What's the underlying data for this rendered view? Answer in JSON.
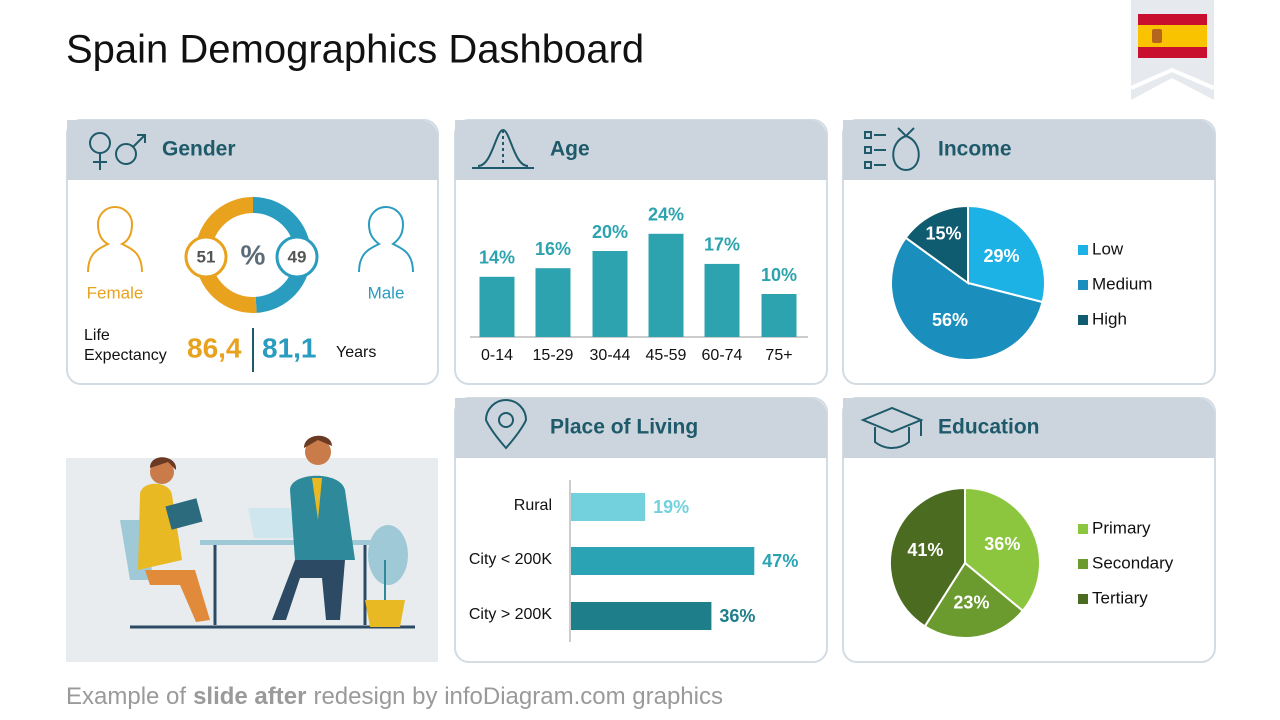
{
  "title": "Spain Demographics Dashboard",
  "footer": [
    "Example of",
    "slide after",
    "redesign by infoDiagram.com graphics"
  ],
  "gender": {
    "title": "Gender",
    "center_label": "%",
    "life_expectancy_label": "Life Expectancy",
    "years_label": "Years",
    "female": {
      "label": "Female",
      "share": 51,
      "color": "#e8a21e",
      "life_expectancy": {
        "value": 86.4,
        "label": "86,4"
      }
    },
    "male": {
      "label": "Male",
      "share": 49,
      "color": "#2a9cbf",
      "life_expectancy": {
        "value": 81.1,
        "label": "81,1"
      }
    }
  },
  "chart_data": [
    {
      "type": "bar",
      "title": "Age",
      "categories": [
        "0-14",
        "15-29",
        "30-44",
        "45-59",
        "60-74",
        "75+"
      ],
      "values": [
        14,
        16,
        20,
        24,
        17,
        10
      ],
      "value_labels": [
        "14%",
        "16%",
        "20%",
        "24%",
        "17%",
        "10%"
      ],
      "color": "#2ca3ae"
    },
    {
      "type": "pie",
      "title": "Income",
      "categories": [
        "Low",
        "Medium",
        "High"
      ],
      "values": [
        29,
        56,
        15
      ],
      "value_labels": [
        "29%",
        "56%",
        "15%"
      ],
      "colors": [
        "#1db2e6",
        "#1a8fbd",
        "#0f5b70"
      ]
    },
    {
      "type": "hbar",
      "title": "Place of Living",
      "categories": [
        "Rural",
        "City < 200K",
        "City > 200K"
      ],
      "values": [
        19,
        47,
        36
      ],
      "value_labels": [
        "19%",
        "47%",
        "36%"
      ],
      "colors": [
        "#72d1dd",
        "#2aa4b4",
        "#1e7e89"
      ]
    },
    {
      "type": "pie",
      "title": "Education",
      "categories": [
        "Primary",
        "Secondary",
        "Tertiary"
      ],
      "values": [
        36,
        23,
        41
      ],
      "value_labels": [
        "36%",
        "23%",
        "41%"
      ],
      "colors": [
        "#8cc63f",
        "#6b9b2f",
        "#4b6b20"
      ]
    }
  ]
}
